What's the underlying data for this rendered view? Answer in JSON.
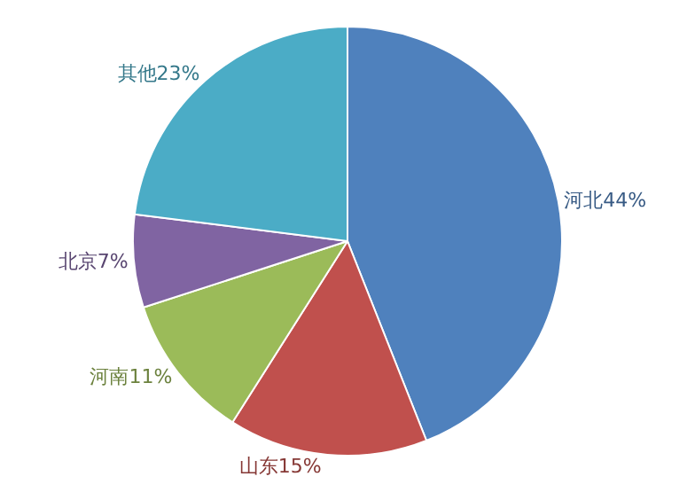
{
  "chart_data": {
    "type": "pie",
    "categories": [
      "河北",
      "山东",
      "河南",
      "北京",
      "其他"
    ],
    "values": [
      44,
      15,
      11,
      7,
      23
    ],
    "colors": [
      "#4f81bd",
      "#c0504d",
      "#9bbb59",
      "#8064a2",
      "#4bacc6"
    ],
    "value_labels": [
      "44%",
      "15%",
      "11%",
      "7%",
      "23%"
    ],
    "data_labels": true,
    "legend": false
  }
}
